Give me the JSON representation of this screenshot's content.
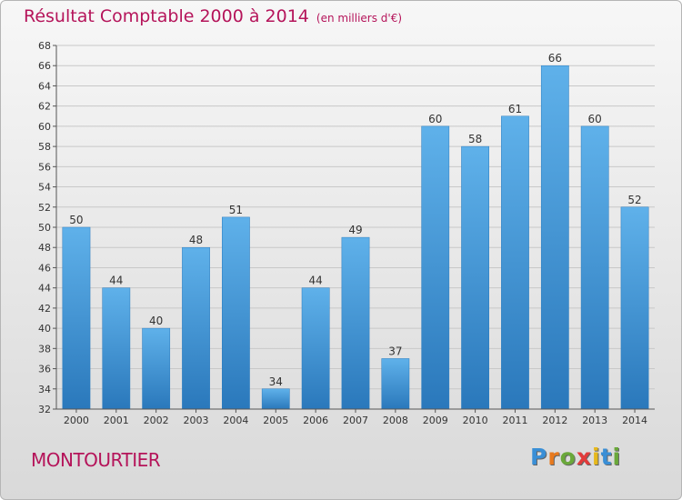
{
  "title": "Résultat Comptable 2000 à 2014",
  "subtitle": "(en milliers d'€)",
  "commune": "MONTOURTIER",
  "logo": {
    "letters": [
      "P",
      "r",
      "o",
      "x",
      "i",
      "t",
      "i"
    ],
    "colors": [
      "#3a8fd6",
      "#e87a1e",
      "#6aa83a",
      "#e23b3b",
      "#e6b81c",
      "#3a8fd6",
      "#6aa83a"
    ]
  },
  "chart_data": {
    "type": "bar",
    "categories": [
      "2000",
      "2001",
      "2002",
      "2003",
      "2004",
      "2005",
      "2006",
      "2007",
      "2008",
      "2009",
      "2010",
      "2011",
      "2012",
      "2013",
      "2014"
    ],
    "values": [
      50,
      44,
      40,
      48,
      51,
      34,
      44,
      49,
      37,
      60,
      58,
      61,
      66,
      60,
      52
    ],
    "title": "Résultat Comptable 2000 à 2014",
    "xlabel": "",
    "ylabel": "",
    "ylim": [
      32,
      68
    ],
    "yticks": [
      32,
      34,
      36,
      38,
      40,
      42,
      44,
      46,
      48,
      50,
      52,
      54,
      56,
      58,
      60,
      62,
      64,
      66,
      68
    ],
    "grid": true,
    "bar_color": "#3a95d8"
  }
}
